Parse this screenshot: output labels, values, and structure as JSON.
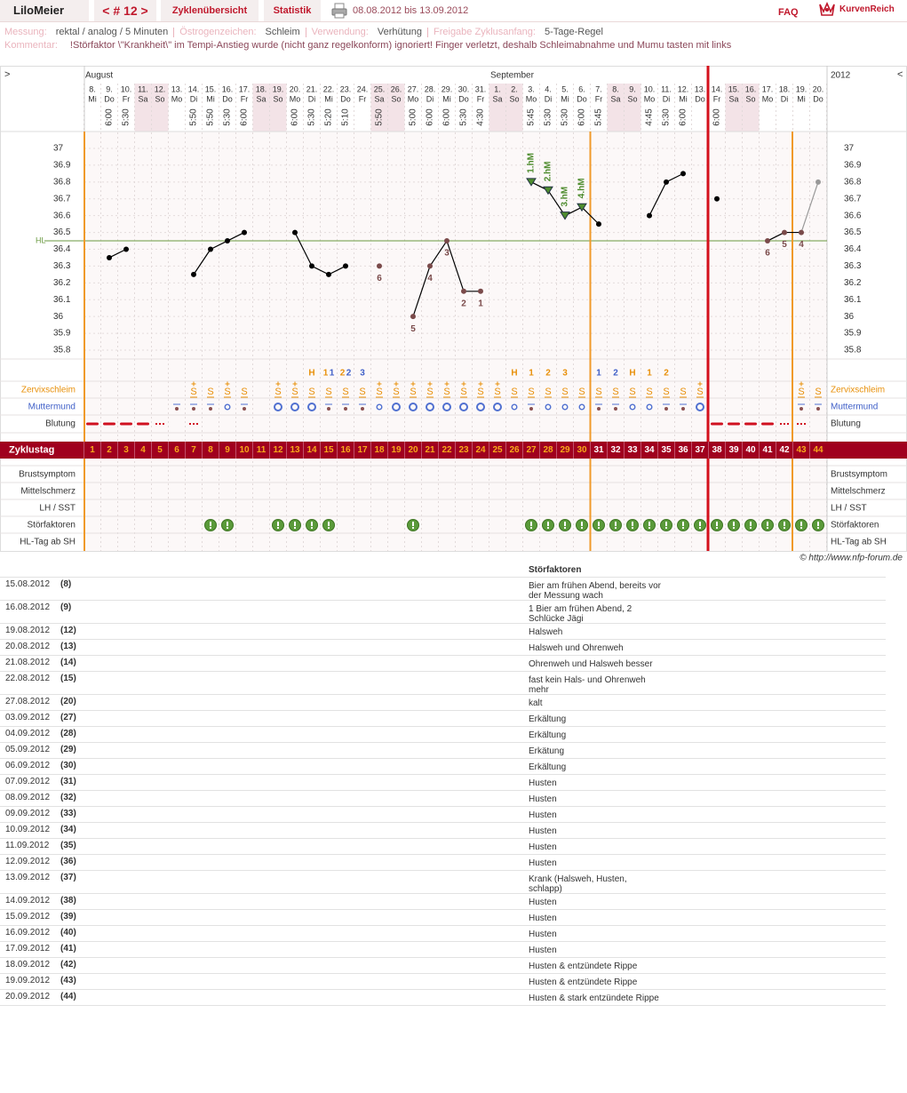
{
  "header": {
    "user": "LiloMeier",
    "cycle_nav": "< # 12 >",
    "tabs": [
      "Zyklenübersicht",
      "Statistik"
    ],
    "date_range": "08.08.2012 bis 13.09.2012",
    "faq": "FAQ",
    "logo": "KurvenReich"
  },
  "info": {
    "items": [
      {
        "label": "Messung:",
        "value": "rektal / analog / 5 Minuten"
      },
      {
        "label": "Östrogenzeichen:",
        "value": "Schleim"
      },
      {
        "label": "Verwendung:",
        "value": "Verhütung"
      },
      {
        "label": "Freigabe Zyklusanfang:",
        "value": "5-Tage-Regel"
      }
    ],
    "comment_label": "Kommentar:",
    "comment": "!Störfaktor \\\"Krankheit\\\" im Tempi-Anstieg wurde (nicht ganz regelkonform) ignoriert! Finger verletzt, deshalb Schleimabnahme und Mumu tasten mit links"
  },
  "chart": {
    "nav_left": ">",
    "nav_right": "<",
    "months": [
      "August",
      "September"
    ],
    "year": "2012",
    "days": [
      "8.",
      "9.",
      "10.",
      "11.",
      "12.",
      "13.",
      "14.",
      "15.",
      "16.",
      "17.",
      "18.",
      "19.",
      "20.",
      "21.",
      "22.",
      "23.",
      "24.",
      "25.",
      "26.",
      "27.",
      "28.",
      "29.",
      "30.",
      "31.",
      "1.",
      "2.",
      "3.",
      "4.",
      "5.",
      "6.",
      "7.",
      "8.",
      "9.",
      "10.",
      "11.",
      "12.",
      "13.",
      "14.",
      "15.",
      "16.",
      "17.",
      "18.",
      "19.",
      "20."
    ],
    "weekdays": [
      "Mi",
      "Do",
      "Fr",
      "Sa",
      "So",
      "Mo",
      "Di",
      "Mi",
      "Do",
      "Fr",
      "Sa",
      "So",
      "Mo",
      "Di",
      "Mi",
      "Do",
      "Fr",
      "Sa",
      "So",
      "Mo",
      "Di",
      "Mi",
      "Do",
      "Fr",
      "Sa",
      "So",
      "Mo",
      "Di",
      "Mi",
      "Do",
      "Fr",
      "Sa",
      "So",
      "Mo",
      "Di",
      "Mi",
      "Do",
      "Fr",
      "Sa",
      "So",
      "Mo",
      "Di",
      "Mi",
      "Do"
    ],
    "times": [
      null,
      "6:00",
      "5:30",
      null,
      null,
      null,
      "5:50",
      "5:50",
      "5:30",
      "6:00",
      null,
      null,
      "6:00",
      "5:30",
      "5:20",
      "5:10",
      null,
      "5:50",
      null,
      "5:00",
      "6:00",
      "6:00",
      "5:30",
      "4:30",
      null,
      null,
      "5:45",
      "5:30",
      "5:30",
      "6:00",
      "5:45",
      null,
      null,
      "4:45",
      "5:30",
      "6:00",
      null,
      "6:00",
      null,
      null,
      null,
      null,
      null,
      null
    ],
    "ylim": [
      35.8,
      37
    ],
    "yticks": [
      35.8,
      35.9,
      36,
      36.1,
      36.2,
      36.3,
      36.4,
      36.5,
      36.6,
      36.7,
      36.8,
      36.9,
      37
    ],
    "hl_label": "HL",
    "hl_value": 36.45,
    "temperatures": [
      null,
      36.35,
      36.4,
      null,
      null,
      null,
      36.25,
      36.4,
      36.45,
      36.5,
      null,
      null,
      36.5,
      36.3,
      36.25,
      36.3,
      null,
      36.3,
      null,
      36.0,
      36.3,
      36.45,
      36.15,
      36.15,
      null,
      null,
      36.8,
      36.75,
      36.6,
      36.65,
      36.55,
      null,
      null,
      36.6,
      36.8,
      36.85,
      null,
      36.7,
      null,
      null,
      36.45,
      36.5,
      36.5,
      36.8
    ],
    "point_markers": [
      null,
      "dot",
      "dot",
      null,
      null,
      null,
      "dot",
      "dot",
      "dot",
      "dot",
      null,
      null,
      "dot",
      "dot",
      "dot",
      "dot",
      null,
      "low",
      null,
      "low",
      "low",
      "low",
      "low",
      "low",
      null,
      null,
      "triangle",
      "triangle",
      "triangle",
      "triangle",
      "dot",
      null,
      null,
      "dot",
      "dot",
      "dot",
      null,
      "dot",
      null,
      null,
      "low",
      "low",
      "low",
      "faded"
    ],
    "point_labels": [
      null,
      null,
      null,
      null,
      null,
      null,
      null,
      null,
      null,
      null,
      null,
      null,
      null,
      null,
      null,
      null,
      null,
      "6",
      null,
      "5",
      "4",
      "3",
      "2",
      "1",
      null,
      null,
      "1.hM",
      "2.hM",
      "3.hM",
      "4.hM",
      null,
      null,
      null,
      null,
      null,
      null,
      null,
      null,
      null,
      null,
      "6",
      "5",
      "4",
      null
    ],
    "schleim_peak": [
      null,
      null,
      null,
      null,
      null,
      null,
      null,
      null,
      null,
      null,
      null,
      null,
      null,
      "H",
      "1",
      "2",
      null,
      null,
      null,
      null,
      null,
      null,
      null,
      null,
      null,
      "H",
      "1",
      "2",
      "3",
      null,
      null,
      null,
      "H",
      "1",
      "2",
      null,
      null,
      null,
      null,
      null,
      null,
      null,
      null,
      null
    ],
    "mumu_peak": [
      null,
      null,
      null,
      null,
      null,
      null,
      null,
      null,
      null,
      null,
      null,
      null,
      null,
      null,
      "1",
      "2",
      "3",
      null,
      null,
      null,
      null,
      null,
      null,
      null,
      null,
      null,
      null,
      null,
      null,
      null,
      "1",
      "2",
      null,
      null,
      null,
      null,
      null,
      null,
      null,
      null,
      null,
      null,
      null,
      null
    ],
    "zervix": [
      null,
      null,
      null,
      null,
      null,
      null,
      "S",
      "S",
      "S",
      "S",
      null,
      "S",
      "S",
      "S",
      "S",
      "S",
      "S",
      "S",
      "S",
      "S",
      "S",
      "S",
      "S",
      "S",
      "S",
      "S",
      "S",
      "S",
      "S",
      "S",
      "S",
      "S",
      "S",
      "S",
      "S",
      "S",
      "S",
      null,
      null,
      null,
      null,
      null,
      "S",
      "S"
    ],
    "zervix_plus": [
      false,
      false,
      false,
      false,
      false,
      false,
      true,
      false,
      true,
      false,
      false,
      true,
      true,
      false,
      false,
      false,
      false,
      true,
      true,
      true,
      true,
      true,
      true,
      true,
      true,
      false,
      false,
      false,
      false,
      false,
      false,
      false,
      false,
      false,
      false,
      false,
      true,
      false,
      false,
      false,
      false,
      false,
      true,
      false
    ],
    "mumu": [
      null,
      null,
      null,
      null,
      null,
      "dot",
      "dot",
      "dot",
      "small",
      "dot",
      null,
      "big",
      "big",
      "big",
      "dot",
      "dot",
      "dot",
      "small",
      "big",
      "big",
      "big",
      "big",
      "big",
      "big",
      "big",
      "small",
      "dot",
      "small",
      "small",
      "small",
      "dot",
      "dot",
      "small",
      "small",
      "dot",
      "dot",
      "big",
      null,
      null,
      null,
      null,
      null,
      "dot",
      "dot"
    ],
    "blutung": [
      "strong",
      "strong",
      "strong",
      "strong",
      "light",
      null,
      "light",
      null,
      null,
      null,
      null,
      null,
      null,
      null,
      null,
      null,
      null,
      null,
      null,
      null,
      null,
      null,
      null,
      null,
      null,
      null,
      null,
      null,
      null,
      null,
      null,
      null,
      null,
      null,
      null,
      null,
      null,
      "strong",
      "strong",
      "strong",
      "strong",
      "light",
      "light",
      null
    ],
    "row_labels": [
      "Zervixschleim",
      "Muttermund",
      "Blutung"
    ],
    "cycle_day_label": "Zyklustag",
    "cycle_days": [
      1,
      2,
      3,
      4,
      5,
      6,
      7,
      8,
      9,
      10,
      11,
      12,
      13,
      14,
      15,
      16,
      17,
      18,
      19,
      20,
      21,
      22,
      23,
      24,
      25,
      26,
      27,
      28,
      29,
      30,
      31,
      32,
      33,
      34,
      35,
      36,
      37,
      38,
      39,
      40,
      41,
      42,
      43,
      44
    ],
    "lower_row_labels": [
      "Brustsymptom",
      "Mittelschmerz",
      "LH / SST",
      "Störfaktoren",
      "HL-Tag ab SH"
    ],
    "stoerfaktoren": [
      false,
      false,
      false,
      false,
      false,
      false,
      false,
      true,
      true,
      false,
      false,
      true,
      true,
      true,
      true,
      false,
      false,
      false,
      false,
      true,
      false,
      false,
      false,
      false,
      false,
      false,
      true,
      true,
      true,
      true,
      true,
      true,
      true,
      true,
      true,
      true,
      true,
      true,
      true,
      true,
      true,
      true,
      true,
      true
    ],
    "copyright": "© http://www.nfp-forum.de"
  },
  "table": {
    "header": "Störfaktoren",
    "rows": [
      [
        "15.08.2012",
        "(8)",
        "Bier am frühen Abend, bereits vor der Messung wach"
      ],
      [
        "16.08.2012",
        "(9)",
        "1 Bier am frühen Abend, 2 Schlücke Jägi"
      ],
      [
        "19.08.2012",
        "(12)",
        "Halsweh"
      ],
      [
        "20.08.2012",
        "(13)",
        "Halsweh und Ohrenweh"
      ],
      [
        "21.08.2012",
        "(14)",
        "Ohrenweh und Halsweh besser"
      ],
      [
        "22.08.2012",
        "(15)",
        "fast kein Hals- und Ohrenweh mehr"
      ],
      [
        "27.08.2012",
        "(20)",
        "kalt"
      ],
      [
        "03.09.2012",
        "(27)",
        "Erkältung"
      ],
      [
        "04.09.2012",
        "(28)",
        "Erkältung"
      ],
      [
        "05.09.2012",
        "(29)",
        "Erkätung"
      ],
      [
        "06.09.2012",
        "(30)",
        "Erkältung"
      ],
      [
        "07.09.2012",
        "(31)",
        "Husten"
      ],
      [
        "08.09.2012",
        "(32)",
        "Husten"
      ],
      [
        "09.09.2012",
        "(33)",
        "Husten"
      ],
      [
        "10.09.2012",
        "(34)",
        "Husten"
      ],
      [
        "11.09.2012",
        "(35)",
        "Husten"
      ],
      [
        "12.09.2012",
        "(36)",
        "Husten"
      ],
      [
        "13.09.2012",
        "(37)",
        "Krank (Halsweh, Husten, schlapp)"
      ],
      [
        "14.09.2012",
        "(38)",
        "Husten"
      ],
      [
        "15.09.2012",
        "(39)",
        "Husten"
      ],
      [
        "16.09.2012",
        "(40)",
        "Husten"
      ],
      [
        "17.09.2012",
        "(41)",
        "Husten"
      ],
      [
        "18.09.2012",
        "(42)",
        "Husten & entzündete Rippe"
      ],
      [
        "19.09.2012",
        "(43)",
        "Husten & entzündete Rippe"
      ],
      [
        "20.09.2012",
        "(44)",
        "Husten & stark entzündete Rippe"
      ]
    ]
  }
}
